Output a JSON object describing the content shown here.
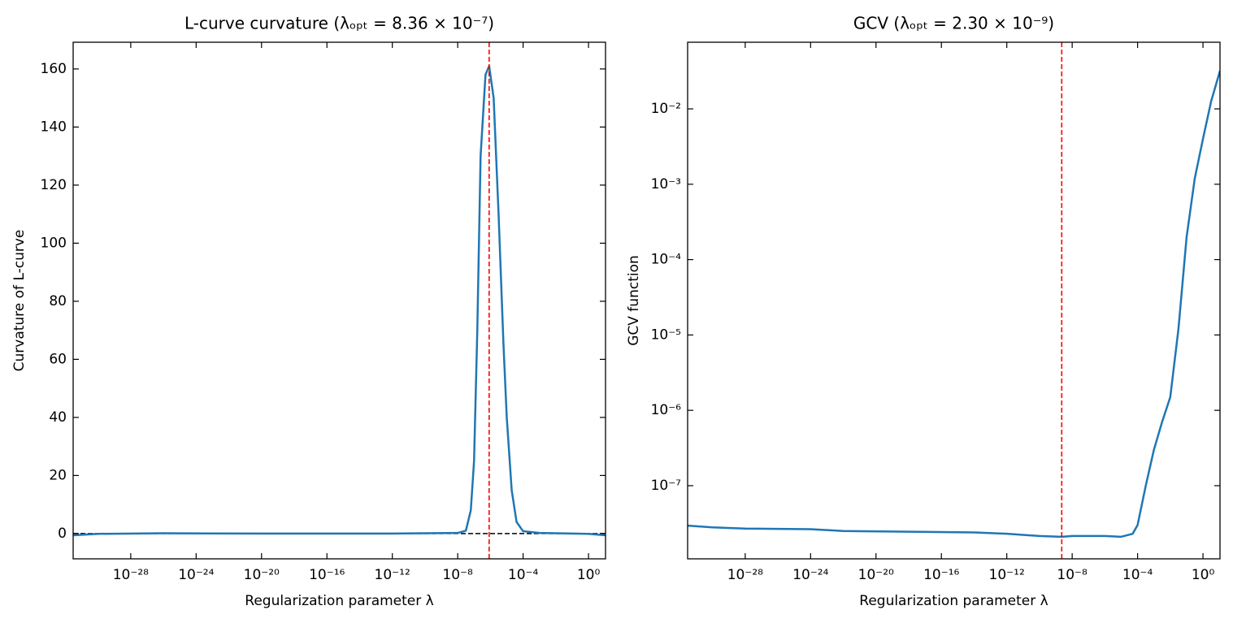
{
  "chart_data": [
    {
      "type": "line",
      "title": "L-curve curvature (λₒₚₜ = 8.36 × 10⁻⁷)",
      "x_label": "Regularization parameter λ",
      "y_label": "Curvature of L-curve",
      "log_x": true,
      "log_y": false,
      "xlim": [
        3e-32,
        11
      ],
      "ylim": [
        -8.7,
        169.2
      ],
      "xticks": [
        {
          "value": 1e-28,
          "label": "10⁻²⁸"
        },
        {
          "value": 1e-24,
          "label": "10⁻²⁴"
        },
        {
          "value": 1e-20,
          "label": "10⁻²⁰"
        },
        {
          "value": 1e-16,
          "label": "10⁻¹⁶"
        },
        {
          "value": 1e-12,
          "label": "10⁻¹²"
        },
        {
          "value": 1e-08,
          "label": "10⁻⁸"
        },
        {
          "value": 0.0001,
          "label": "10⁻⁴"
        },
        {
          "value": 1,
          "label": "10⁰"
        }
      ],
      "yticks": [
        0,
        20,
        40,
        60,
        80,
        100,
        120,
        140,
        160
      ],
      "x": [
        3e-32,
        1e-30,
        1e-26,
        1e-20,
        1e-12,
        1e-08,
        3.16e-08,
        6.31e-08,
        1e-07,
        1.58e-07,
        2.51e-07,
        5.01e-07,
        8.36e-07,
        1.58e-06,
        3.16e-06,
        6.31e-06,
        1e-05,
        2e-05,
        3.98e-05,
        0.0001,
        0.001,
        1,
        11
      ],
      "series": [
        {
          "color": "#1f77b4",
          "values": [
            -0.6,
            -0.1,
            0.1,
            0,
            0,
            0.2,
            1,
            8,
            25,
            70,
            130,
            158,
            161,
            150,
            110,
            65,
            40,
            15,
            4,
            0.8,
            0.2,
            -0.1,
            -0.6
          ]
        }
      ],
      "vlines": [
        {
          "value": 8.36e-07,
          "color": "#ff0000"
        }
      ],
      "hlines": [
        {
          "value": 0,
          "color": "#000000"
        }
      ]
    },
    {
      "type": "line",
      "title": "GCV (λₒₚₜ = 2.30 × 10⁻⁹)",
      "x_label": "Regularization parameter λ",
      "y_label": "GCV function",
      "log_x": true,
      "log_y": true,
      "xlim": [
        3e-32,
        11
      ],
      "ylim": [
        1.07e-08,
        0.0766
      ],
      "xticks": [
        {
          "value": 1e-28,
          "label": "10⁻²⁸"
        },
        {
          "value": 1e-24,
          "label": "10⁻²⁴"
        },
        {
          "value": 1e-20,
          "label": "10⁻²⁰"
        },
        {
          "value": 1e-16,
          "label": "10⁻¹⁶"
        },
        {
          "value": 1e-12,
          "label": "10⁻¹²"
        },
        {
          "value": 1e-08,
          "label": "10⁻⁸"
        },
        {
          "value": 0.0001,
          "label": "10⁻⁴"
        },
        {
          "value": 1,
          "label": "10⁰"
        }
      ],
      "yticks": [
        {
          "value": 1e-07,
          "label": "10⁻⁷"
        },
        {
          "value": 1e-06,
          "label": "10⁻⁶"
        },
        {
          "value": 1e-05,
          "label": "10⁻⁵"
        },
        {
          "value": 0.0001,
          "label": "10⁻⁴"
        },
        {
          "value": 0.001,
          "label": "10⁻³"
        },
        {
          "value": 0.01,
          "label": "10⁻²"
        }
      ],
      "x": [
        3e-32,
        1e-30,
        1e-28,
        1e-24,
        1e-22,
        1e-18,
        1e-14,
        1e-12,
        1e-10,
        2.3e-09,
        1e-08,
        1e-06,
        1e-05,
        5e-05,
        0.0001,
        0.000316,
        0.001,
        0.00316,
        0.01,
        0.0316,
        0.1,
        0.316,
        1,
        3.16,
        11
      ],
      "series": [
        {
          "color": "#1f77b4",
          "values": [
            2.95e-08,
            2.8e-08,
            2.7e-08,
            2.65e-08,
            2.5e-08,
            2.45e-08,
            2.4e-08,
            2.3e-08,
            2.15e-08,
            2.1e-08,
            2.15e-08,
            2.15e-08,
            2.1e-08,
            2.3e-08,
            3e-08,
            1e-07,
            3e-07,
            7e-07,
            1.5e-06,
            1.2e-05,
            0.0002,
            0.0012,
            0.004,
            0.0126,
            0.032
          ]
        }
      ],
      "vlines": [
        {
          "value": 2.3e-09,
          "color": "#ff0000"
        }
      ],
      "hlines": []
    }
  ]
}
